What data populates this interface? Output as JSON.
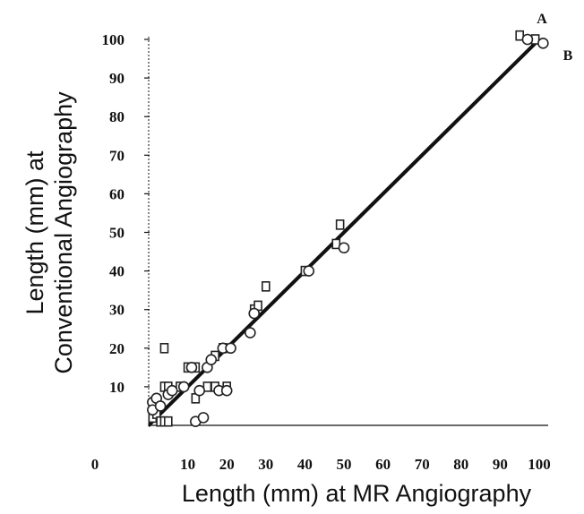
{
  "chart_data": {
    "type": "scatter",
    "xlabel": "Length (mm) at MR Angiography",
    "ylabel_line1": "Length (mm) at",
    "ylabel_line2": "Conventional Angiography",
    "xlim": [
      0,
      100
    ],
    "ylim": [
      0,
      100
    ],
    "x_ticks": [
      "0",
      "10",
      "20",
      "30",
      "40",
      "50",
      "60",
      "70",
      "80",
      "90",
      "100"
    ],
    "y_ticks": [
      "10",
      "20",
      "30",
      "40",
      "50",
      "60",
      "70",
      "80",
      "90",
      "100"
    ],
    "grid": false,
    "lines": [
      {
        "label": "A",
        "x": [
          0,
          100
        ],
        "y": [
          0,
          100
        ]
      },
      {
        "label": "B",
        "x": [
          0,
          100
        ],
        "y": [
          0,
          100
        ]
      }
    ],
    "series": [
      {
        "marker": "square",
        "points": [
          [
            1,
            2
          ],
          [
            2,
            3
          ],
          [
            3,
            1
          ],
          [
            4,
            1
          ],
          [
            5,
            1
          ],
          [
            4,
            20
          ],
          [
            4,
            10
          ],
          [
            5,
            10
          ],
          [
            8,
            10
          ],
          [
            10,
            15
          ],
          [
            12,
            15
          ],
          [
            12,
            7
          ],
          [
            15,
            10
          ],
          [
            17,
            10
          ],
          [
            20,
            10
          ],
          [
            17,
            18
          ],
          [
            19,
            20
          ],
          [
            27,
            30
          ],
          [
            28,
            31
          ],
          [
            30,
            36
          ],
          [
            40,
            40
          ],
          [
            48,
            47
          ],
          [
            49,
            52
          ],
          [
            95,
            101
          ],
          [
            99,
            100
          ]
        ]
      },
      {
        "marker": "circle",
        "points": [
          [
            1,
            6
          ],
          [
            2,
            7
          ],
          [
            1,
            4
          ],
          [
            3,
            5
          ],
          [
            5,
            8
          ],
          [
            6,
            9
          ],
          [
            9,
            10
          ],
          [
            11,
            15
          ],
          [
            12,
            1
          ],
          [
            14,
            2
          ],
          [
            13,
            9
          ],
          [
            15,
            15
          ],
          [
            16,
            17
          ],
          [
            18,
            9
          ],
          [
            20,
            9
          ],
          [
            19,
            20
          ],
          [
            21,
            20
          ],
          [
            26,
            24
          ],
          [
            27,
            29
          ],
          [
            41,
            40
          ],
          [
            50,
            46
          ],
          [
            97,
            100
          ],
          [
            101,
            99
          ]
        ]
      }
    ]
  }
}
